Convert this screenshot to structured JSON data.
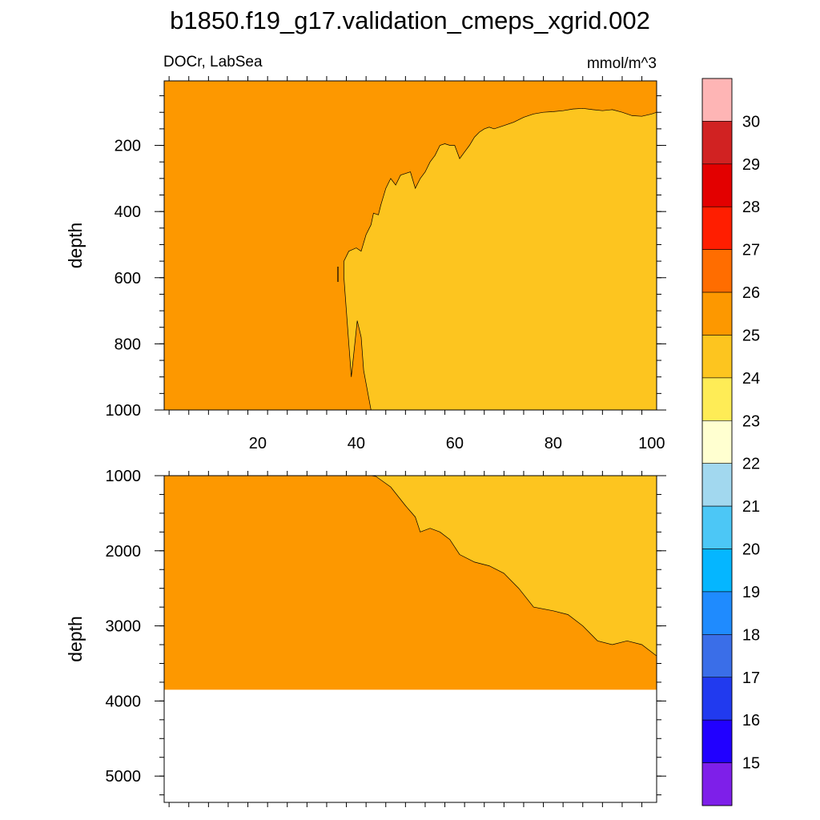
{
  "chart_data": {
    "type": "heatmap",
    "title": "b1850.f19_g17.validation_cmeps_xgrid.002",
    "subtitle_left": "DOCr, LabSea",
    "subtitle_right": "mmol/m^3",
    "x_ticks": [
      "20",
      "40",
      "60",
      "80",
      "100"
    ],
    "x_range": [
      1,
      101
    ],
    "colorbar": {
      "levels": [
        "15",
        "16",
        "17",
        "18",
        "19",
        "20",
        "21",
        "22",
        "23",
        "24",
        "25",
        "26",
        "27",
        "28",
        "29",
        "30"
      ],
      "colors": [
        "#7e1fe9",
        "#2100ff",
        "#213aef",
        "#3a6ee8",
        "#1f8bfe",
        "#05b6ff",
        "#4cc7f6",
        "#a2d8ef",
        "#ffffd0",
        "#feec56",
        "#fdc51f",
        "#fd9800",
        "#ff6d00",
        "#ff1e00",
        "#e30000",
        "#d12222",
        "#feb5b5"
      ]
    },
    "panels": [
      {
        "name": "upper",
        "ylabel": "depth",
        "y_ticks": [
          "200",
          "400",
          "600",
          "800",
          "1000"
        ],
        "y_range": [
          5,
          1000
        ],
        "background_level": "25-26",
        "region_level": "24-25",
        "boundary": [
          [
            43,
            1000
          ],
          [
            41.5,
            880
          ],
          [
            41,
            780
          ],
          [
            40.2,
            730
          ],
          [
            39.5,
            830
          ],
          [
            39,
            900
          ],
          [
            38.5,
            800
          ],
          [
            37.5,
            600
          ],
          [
            37.5,
            550
          ],
          [
            38.5,
            520
          ],
          [
            40,
            510
          ],
          [
            41,
            520
          ],
          [
            42,
            470
          ],
          [
            43,
            440
          ],
          [
            43.5,
            405
          ],
          [
            44.5,
            410
          ],
          [
            45,
            380
          ],
          [
            46,
            330
          ],
          [
            47,
            300
          ],
          [
            48,
            320
          ],
          [
            49,
            290
          ],
          [
            51,
            280
          ],
          [
            52,
            330
          ],
          [
            53,
            300
          ],
          [
            54,
            280
          ],
          [
            55,
            250
          ],
          [
            56,
            230
          ],
          [
            57,
            200
          ],
          [
            58,
            195
          ],
          [
            59,
            200
          ],
          [
            60,
            200
          ],
          [
            61,
            240
          ],
          [
            62,
            220
          ],
          [
            63,
            200
          ],
          [
            64,
            175
          ],
          [
            65,
            160
          ],
          [
            66,
            150
          ],
          [
            67,
            145
          ],
          [
            68,
            150
          ],
          [
            70,
            140
          ],
          [
            72,
            130
          ],
          [
            74,
            115
          ],
          [
            76,
            105
          ],
          [
            78,
            100
          ],
          [
            80,
            98
          ],
          [
            82,
            95
          ],
          [
            84,
            90
          ],
          [
            86,
            88
          ],
          [
            88,
            92
          ],
          [
            90,
            95
          ],
          [
            92,
            92
          ],
          [
            94,
            100
          ],
          [
            96,
            110
          ],
          [
            98,
            112
          ],
          [
            100,
            105
          ],
          [
            101,
            100
          ]
        ]
      },
      {
        "name": "lower",
        "ylabel": "depth",
        "y_ticks": [
          "1000",
          "2000",
          "3000",
          "4000",
          "5000"
        ],
        "y_range": [
          1000,
          5350
        ],
        "background_level": "25-26",
        "region_level": "24-25",
        "bottom_depth": 3850,
        "boundary": [
          [
            43,
            1000
          ],
          [
            44,
            1010
          ],
          [
            47,
            1150
          ],
          [
            50,
            1400
          ],
          [
            52,
            1550
          ],
          [
            53,
            1750
          ],
          [
            55,
            1700
          ],
          [
            57,
            1750
          ],
          [
            59,
            1850
          ],
          [
            61,
            2050
          ],
          [
            64,
            2150
          ],
          [
            67,
            2200
          ],
          [
            70,
            2300
          ],
          [
            73,
            2500
          ],
          [
            76,
            2750
          ],
          [
            80,
            2800
          ],
          [
            83,
            2850
          ],
          [
            86,
            3000
          ],
          [
            89,
            3200
          ],
          [
            92,
            3250
          ],
          [
            95,
            3200
          ],
          [
            98,
            3250
          ],
          [
            101,
            3400
          ]
        ]
      }
    ]
  }
}
